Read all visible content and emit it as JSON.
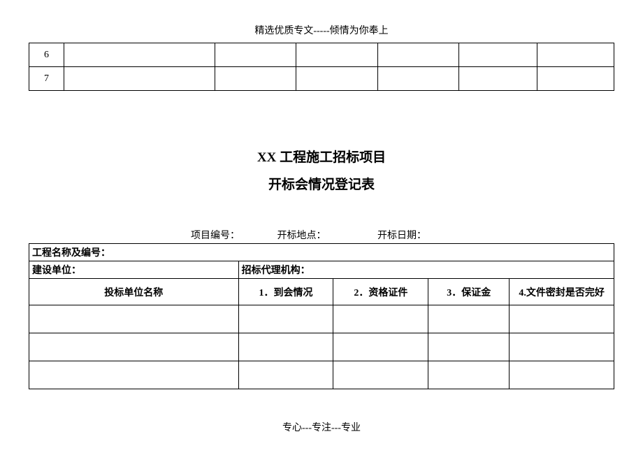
{
  "header": "精选优质专文-----倾情为你奉上",
  "top_table": {
    "rows": [
      {
        "num": "6",
        "c2": "",
        "c3": "",
        "c4": "",
        "c5": "",
        "c6": "",
        "c7": ""
      },
      {
        "num": "7",
        "c2": "",
        "c3": "",
        "c4": "",
        "c5": "",
        "c6": "",
        "c7": ""
      }
    ]
  },
  "title": {
    "line1": "XX 工程施工招标项目",
    "line2": "开标会情况登记表"
  },
  "meta": {
    "item1": "项目编号：",
    "item2": "开标地点：",
    "item3": "开标日期："
  },
  "main_table": {
    "row1_label": "工程名称及编号：",
    "row2_label1": "建设单位：",
    "row2_label2": "招标代理机构：",
    "headers": {
      "h1": "投标单位名称",
      "h2": "1．到会情况",
      "h3": "2．资格证件",
      "h4": "3．保证金",
      "h5": "4.文件密封是否完好"
    },
    "data_rows": [
      {
        "c1": "",
        "c2": "",
        "c3": "",
        "c4": "",
        "c5": ""
      },
      {
        "c1": "",
        "c2": "",
        "c3": "",
        "c4": "",
        "c5": ""
      },
      {
        "c1": "",
        "c2": "",
        "c3": "",
        "c4": "",
        "c5": ""
      }
    ]
  },
  "footer": "专心---专注---专业"
}
